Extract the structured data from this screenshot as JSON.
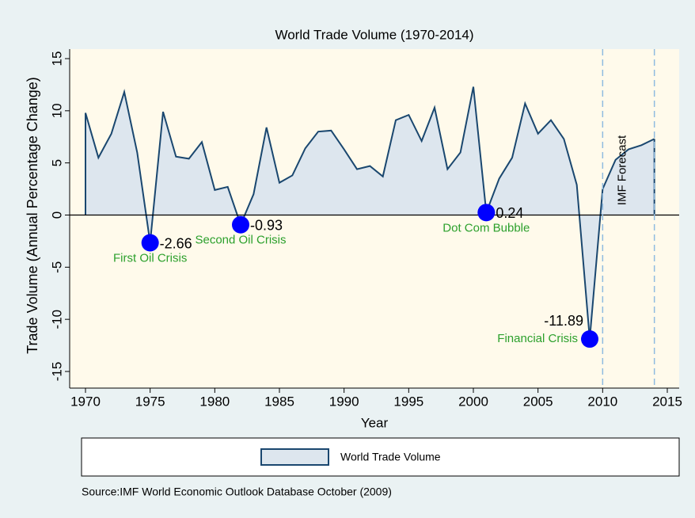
{
  "chart_data": {
    "type": "area",
    "title": "World Trade Volume (1970-2014)",
    "x_label": "Year",
    "y_label": "Trade Volume (Annual Percentage Change)",
    "source": "Source:IMF World Economic Outlook Database October (2009)",
    "x": [
      1970,
      1971,
      1972,
      1973,
      1974,
      1975,
      1976,
      1977,
      1978,
      1979,
      1980,
      1981,
      1982,
      1983,
      1984,
      1985,
      1986,
      1987,
      1988,
      1989,
      1990,
      1991,
      1992,
      1993,
      1994,
      1995,
      1996,
      1997,
      1998,
      1999,
      2000,
      2001,
      2002,
      2003,
      2004,
      2005,
      2006,
      2007,
      2008,
      2009,
      2010,
      2011,
      2012,
      2013,
      2014
    ],
    "series": [
      {
        "name": "World Trade Volume",
        "color": "#1a476f",
        "fill": "#dde6ee",
        "values": [
          9.8,
          5.5,
          7.8,
          11.8,
          6.0,
          -2.66,
          9.9,
          5.6,
          5.4,
          7.0,
          2.4,
          2.7,
          -0.93,
          2.0,
          8.4,
          3.1,
          3.8,
          6.4,
          8.0,
          8.1,
          6.3,
          4.4,
          4.7,
          3.7,
          9.1,
          9.6,
          7.1,
          10.3,
          4.4,
          6.0,
          12.3,
          0.24,
          3.5,
          5.5,
          10.7,
          7.8,
          9.1,
          7.3,
          2.9,
          -11.89,
          2.5,
          5.3,
          6.3,
          6.7,
          7.3
        ],
        "value_labels": [
          null,
          null,
          null,
          null,
          null,
          "-2.66",
          null,
          null,
          null,
          null,
          null,
          null,
          "-0.93",
          null,
          null,
          null,
          null,
          null,
          null,
          null,
          null,
          null,
          null,
          null,
          null,
          null,
          null,
          null,
          null,
          null,
          null,
          "0.24",
          null,
          null,
          null,
          null,
          null,
          null,
          null,
          "-11.89",
          null,
          null,
          null,
          null,
          null
        ]
      }
    ],
    "annotations": [
      {
        "index": 5,
        "text": "First Oil Crisis",
        "label_position": "below"
      },
      {
        "index": 12,
        "text": "Second Oil Crisis",
        "label_position": "below"
      },
      {
        "index": 31,
        "text": "Dot Com Bubble",
        "label_position": "below"
      },
      {
        "index": 39,
        "text": "Financial Crisis",
        "label_position": "left"
      }
    ],
    "marker_color": "#0000ff",
    "annotation_color": "#2ca02c",
    "yline": 0,
    "xlines": [
      2010,
      2014
    ],
    "xline_text": "IMF Forecast",
    "xline_color": "#8fbbe0",
    "xlim": [
      1970,
      2015
    ],
    "xticks": [
      1970,
      1975,
      1980,
      1985,
      1990,
      1995,
      2000,
      2005,
      2010,
      2015
    ],
    "ylim": [
      -15,
      15
    ],
    "yticks": [
      -15,
      -10,
      -5,
      0,
      5,
      10,
      15
    ]
  }
}
